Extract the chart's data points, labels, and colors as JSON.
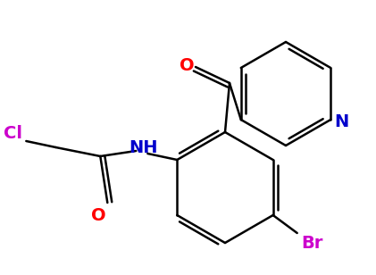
{
  "bg_color": "#ffffff",
  "bond_color": "#000000",
  "bond_width": 1.8,
  "atom_colors": {
    "O": "#ff0000",
    "N_pyridine": "#0000cc",
    "N_amide": "#0000cc",
    "Cl": "#cc00cc",
    "Br": "#cc00cc"
  },
  "font_size": 14
}
